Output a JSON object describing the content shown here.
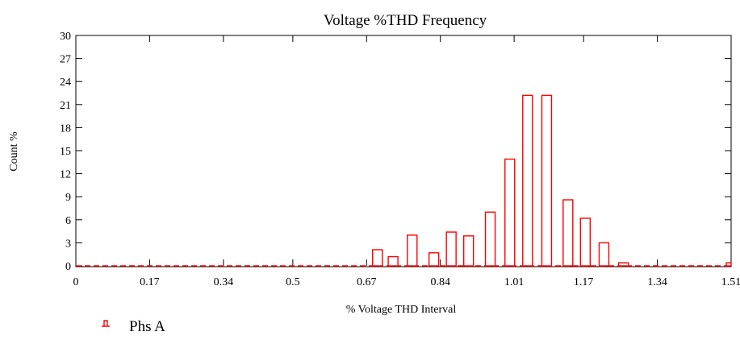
{
  "chart_data": {
    "type": "bar",
    "title": "Voltage %THD Frequency",
    "xlabel": "% Voltage  THD Interval",
    "ylabel": "Count %",
    "xlim": [
      0,
      1.51
    ],
    "ylim": [
      0,
      30
    ],
    "x_ticks": [
      "0",
      "0.17",
      "0.34",
      "0.5",
      "0.67",
      "0.84",
      "1.01",
      "1.17",
      "1.34",
      "1.51"
    ],
    "y_ticks": [
      "0",
      "3",
      "6",
      "9",
      "12",
      "15",
      "18",
      "21",
      "24",
      "27",
      "30"
    ],
    "grid": false,
    "legend_position": "bottom-left",
    "bar_color": "#ff0000",
    "series": [
      {
        "name": "Phs A",
        "points": [
          {
            "x": 0.695,
            "y": 2.1
          },
          {
            "x": 0.731,
            "y": 1.2
          },
          {
            "x": 0.775,
            "y": 4.0
          },
          {
            "x": 0.825,
            "y": 1.7
          },
          {
            "x": 0.865,
            "y": 4.4
          },
          {
            "x": 0.905,
            "y": 3.9
          },
          {
            "x": 0.955,
            "y": 7.0
          },
          {
            "x": 1.0,
            "y": 13.9
          },
          {
            "x": 1.041,
            "y": 22.2
          },
          {
            "x": 1.085,
            "y": 22.2
          },
          {
            "x": 1.134,
            "y": 8.6
          },
          {
            "x": 1.174,
            "y": 6.2
          },
          {
            "x": 1.217,
            "y": 3.0
          },
          {
            "x": 1.262,
            "y": 0.4
          },
          {
            "x": 1.51,
            "y": 0.4
          }
        ]
      }
    ]
  }
}
